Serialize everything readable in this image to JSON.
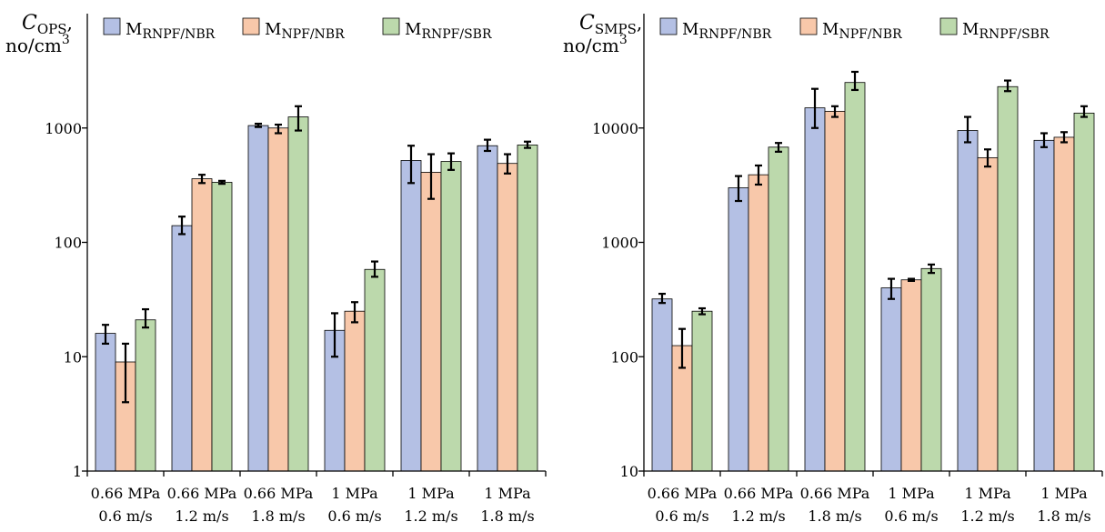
{
  "colors": {
    "series": [
      "#b4c0e4",
      "#f8c8aa",
      "#bcd9ac"
    ],
    "bar_stroke": "#000000",
    "error_bar": "#000000",
    "axis": "#000000"
  },
  "chart_data": [
    {
      "type": "bar",
      "yscale": "log",
      "ylim": [
        1,
        10000
      ],
      "yticks": [
        "1",
        "10",
        "100",
        "1000"
      ],
      "ylabel": {
        "symbol": "C",
        "subscript": "OPS",
        "comma": ",",
        "unit_base": "no/cm",
        "unit_sup": "3"
      },
      "legend": {
        "placement": "top"
      },
      "categories": [
        {
          "line1": "0.66 MPa",
          "line2": "0.6 m/s"
        },
        {
          "line1": "0.66 MPa",
          "line2": "1.2 m/s"
        },
        {
          "line1": "0.66 MPa",
          "line2": "1.8 m/s"
        },
        {
          "line1": "1 MPa",
          "line2": "0.6 m/s"
        },
        {
          "line1": "1 MPa",
          "line2": "1.2 m/s"
        },
        {
          "line1": "1 MPa",
          "line2": "1.8 m/s"
        }
      ],
      "series": [
        {
          "name_base": "M",
          "name_sub": "RNPF/NBR",
          "values": [
            16,
            140,
            1050,
            17,
            520,
            700
          ],
          "err_low": [
            13,
            118,
            1020,
            10,
            330,
            630
          ],
          "err_high": [
            19,
            168,
            1090,
            24,
            700,
            790
          ]
        },
        {
          "name_base": "M",
          "name_sub": "NPF/NBR",
          "values": [
            9,
            360,
            1000,
            25,
            410,
            490
          ],
          "err_low": [
            4,
            330,
            900,
            20,
            240,
            400
          ],
          "err_high": [
            13,
            390,
            1070,
            30,
            590,
            590
          ]
        },
        {
          "name_base": "M",
          "name_sub": "RNPF/SBR",
          "values": [
            21,
            335,
            1250,
            58,
            510,
            710
          ],
          "err_low": [
            18,
            325,
            950,
            50,
            430,
            670
          ],
          "err_high": [
            26,
            345,
            1550,
            68,
            600,
            760
          ]
        }
      ]
    },
    {
      "type": "bar",
      "yscale": "log",
      "ylim": [
        10,
        100000
      ],
      "yticks": [
        "10",
        "100",
        "1000",
        "10000"
      ],
      "ylabel": {
        "symbol": "C",
        "subscript": "SMPS",
        "comma": ",",
        "unit_base": "no/cm",
        "unit_sup": "3"
      },
      "legend": {
        "placement": "top"
      },
      "categories": [
        {
          "line1": "0.66 MPa",
          "line2": "0.6 m/s"
        },
        {
          "line1": "0.66 MPa",
          "line2": "1.2 m/s"
        },
        {
          "line1": "0.66 MPa",
          "line2": "1.8 m/s"
        },
        {
          "line1": "1 MPa",
          "line2": "0.6 m/s"
        },
        {
          "line1": "1 MPa",
          "line2": "1.2 m/s"
        },
        {
          "line1": "1 MPa",
          "line2": "1.8 m/s"
        }
      ],
      "series": [
        {
          "name_base": "M",
          "name_sub": "RNPF/NBR",
          "values": [
            320,
            3000,
            15000,
            400,
            9500,
            7800
          ],
          "err_low": [
            295,
            2300,
            10000,
            320,
            7500,
            6800
          ],
          "err_high": [
            355,
            3800,
            22000,
            480,
            12500,
            9000
          ]
        },
        {
          "name_base": "M",
          "name_sub": "NPF/NBR",
          "values": [
            125,
            3900,
            14000,
            470,
            5500,
            8300
          ],
          "err_low": [
            80,
            3200,
            12500,
            460,
            4600,
            7500
          ],
          "err_high": [
            175,
            4700,
            15500,
            480,
            6500,
            9200
          ]
        },
        {
          "name_base": "M",
          "name_sub": "RNPF/SBR",
          "values": [
            250,
            6800,
            25000,
            590,
            23000,
            13500
          ],
          "err_low": [
            235,
            6200,
            21500,
            540,
            21000,
            12500
          ],
          "err_high": [
            265,
            7400,
            31000,
            640,
            26000,
            15500
          ]
        }
      ]
    }
  ]
}
